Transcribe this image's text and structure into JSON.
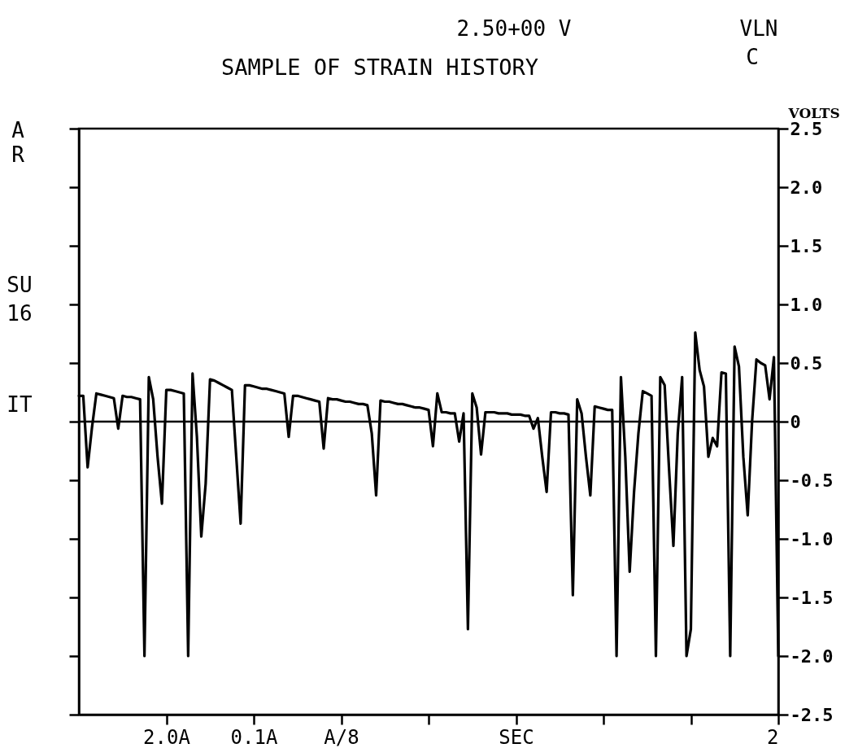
{
  "chart_data": {
    "type": "line",
    "title": "SAMPLE OF STRAIN HISTORY",
    "ylabel": "VOLTS",
    "annotations": [
      "2.50+00 V",
      "VLN",
      "C",
      "A",
      "R",
      "SU",
      "16",
      "IT"
    ],
    "categories": [
      null,
      null,
      null,
      null,
      null,
      null,
      null,
      null,
      null,
      null,
      null,
      null,
      null,
      null,
      null,
      null,
      null,
      null,
      null,
      null,
      "2.0A",
      null,
      null,
      null,
      null,
      null,
      null,
      null,
      null,
      null,
      null,
      null,
      null,
      null,
      null,
      null,
      null,
      null,
      null,
      null,
      "0.1A",
      null,
      null,
      null,
      null,
      null,
      null,
      null,
      null,
      null,
      null,
      null,
      null,
      null,
      null,
      null,
      null,
      null,
      null,
      null,
      "A/8",
      null,
      null,
      null,
      null,
      null,
      null,
      null,
      null,
      null,
      null,
      null,
      null,
      null,
      null,
      null,
      null,
      null,
      null,
      null,
      null,
      null,
      null,
      null,
      null,
      null,
      null,
      null,
      null,
      null,
      null,
      null,
      null,
      null,
      null,
      null,
      null,
      null,
      null,
      null,
      "SEC",
      null,
      null,
      null,
      null,
      null,
      null,
      null,
      null,
      null,
      null,
      null,
      null,
      null,
      null,
      null,
      null,
      null,
      null,
      null,
      null,
      null,
      null,
      null,
      null,
      null,
      null,
      null,
      null,
      null,
      null,
      null,
      null,
      null,
      null,
      null,
      null,
      null,
      null,
      null,
      null,
      null,
      null,
      null,
      null,
      null,
      null,
      null,
      null,
      null,
      null,
      null,
      null,
      null,
      null,
      null,
      null,
      null,
      null,
      null,
      "2"
    ],
    "series": [
      {
        "color": "#000000",
        "values": [
          0.22,
          0.22,
          -0.39,
          -0.05,
          0.24,
          0.23,
          0.22,
          0.21,
          0.2,
          -0.06,
          0.22,
          0.21,
          0.21,
          0.2,
          0.19,
          -2.0,
          0.38,
          0.19,
          -0.3,
          -0.7,
          0.27,
          0.27,
          0.26,
          0.25,
          0.24,
          -2.0,
          0.41,
          -0.13,
          -0.98,
          -0.53,
          0.36,
          0.35,
          0.33,
          0.31,
          0.29,
          0.27,
          -0.3,
          -0.87,
          0.31,
          0.31,
          0.3,
          0.29,
          0.28,
          0.28,
          0.27,
          0.26,
          0.25,
          0.24,
          -0.13,
          0.22,
          0.22,
          0.21,
          0.2,
          0.19,
          0.18,
          0.17,
          -0.23,
          0.2,
          0.19,
          0.19,
          0.18,
          0.17,
          0.17,
          0.16,
          0.15,
          0.15,
          0.14,
          -0.1,
          -0.63,
          0.18,
          0.17,
          0.17,
          0.16,
          0.15,
          0.15,
          0.14,
          0.13,
          0.12,
          0.12,
          0.11,
          0.1,
          -0.21,
          0.24,
          0.08,
          0.08,
          0.07,
          0.07,
          -0.17,
          0.07,
          -1.77,
          0.24,
          0.12,
          -0.28,
          0.08,
          0.08,
          0.08,
          0.07,
          0.07,
          0.07,
          0.06,
          0.06,
          0.06,
          0.05,
          0.05,
          -0.06,
          0.03,
          -0.3,
          -0.6,
          0.08,
          0.08,
          0.07,
          0.07,
          0.06,
          -1.48,
          0.19,
          0.07,
          -0.3,
          -0.63,
          0.13,
          0.12,
          0.11,
          0.1,
          0.1,
          -2.0,
          0.38,
          -0.3,
          -1.28,
          -0.6,
          -0.1,
          0.26,
          0.24,
          0.22,
          -2.0,
          0.38,
          0.31,
          -0.4,
          -1.06,
          -0.1,
          0.38,
          -2.0,
          -1.77,
          0.76,
          0.44,
          0.3,
          -0.3,
          -0.14,
          -0.21,
          0.42,
          0.41,
          -2.0,
          0.64,
          0.47,
          -0.3,
          -0.8,
          0.0,
          0.53,
          0.5,
          0.48,
          0.19,
          0.55,
          -2.0
        ]
      }
    ],
    "ylim": [
      -2.5,
      2.5
    ],
    "yticks": [
      2.5,
      {
        "value": 2,
        "label": "2.0"
      },
      1.5,
      {
        "value": 1,
        "label": "1.0"
      },
      0.5,
      0,
      -0.5,
      {
        "value": -1,
        "label": "-1.0"
      },
      -1.5,
      {
        "value": -2,
        "label": "-2.0"
      },
      -2.5
    ],
    "ref_lines": [
      {
        "axis": "y",
        "value": 0,
        "color": "#000000"
      }
    ],
    "marker": "none",
    "line_style": "solid"
  }
}
